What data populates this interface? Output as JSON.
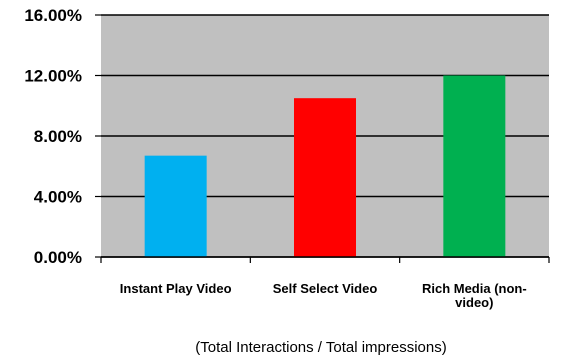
{
  "chart_data": {
    "type": "bar",
    "categories": [
      "Instant Play Video",
      "Self Select Video",
      "Rich Media (non-video)"
    ],
    "category_label_lines": [
      [
        "Instant Play Video"
      ],
      [
        "Self Select Video"
      ],
      [
        "Rich Media (non-",
        "video)"
      ]
    ],
    "values": [
      6.7,
      10.5,
      12.0
    ],
    "bar_colors": [
      "#00b0f0",
      "#ff0000",
      "#00b050"
    ],
    "yticks": [
      "0.00%",
      "4.00%",
      "8.00%",
      "12.00%",
      "16.00%"
    ],
    "ylim": [
      0,
      16
    ],
    "grid": true,
    "plot_background": "#c0c0c0",
    "title": "",
    "xlabel": "(Total Interactions / Total impressions)",
    "ylabel": ""
  }
}
